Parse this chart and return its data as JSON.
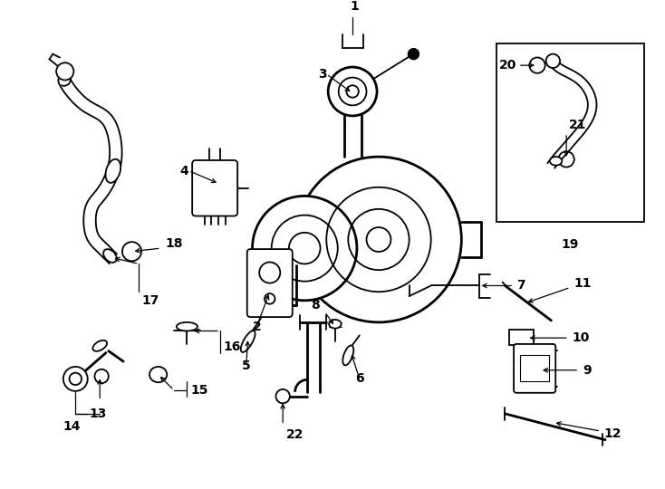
{
  "bg_color": "#ffffff",
  "line_color": "#000000",
  "fig_width": 7.34,
  "fig_height": 5.4,
  "dpi": 100,
  "font_size": 10
}
